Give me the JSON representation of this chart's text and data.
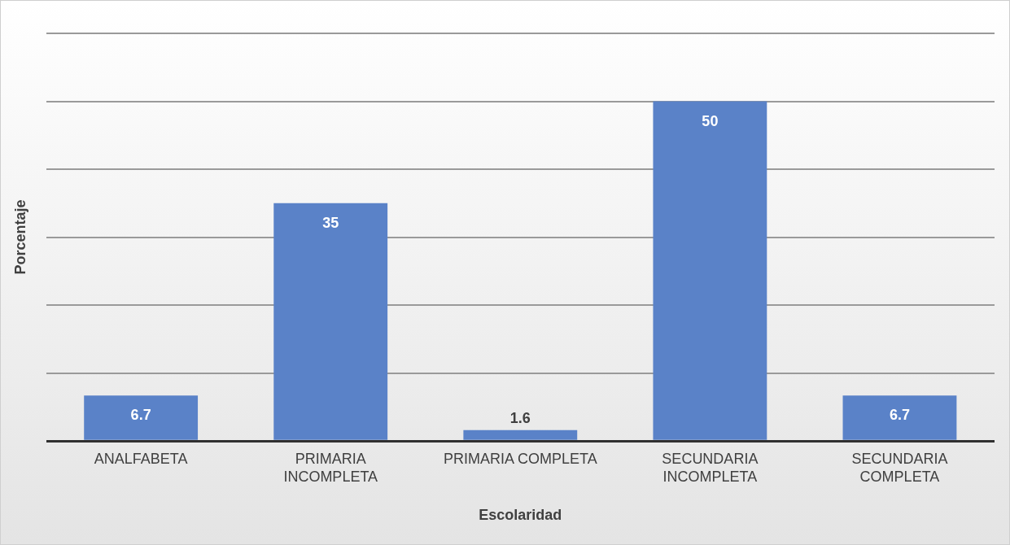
{
  "chart_data": {
    "type": "bar",
    "xlabel": "Escolaridad",
    "ylabel": "Porcentaje",
    "categories": [
      "ANALFABETA",
      "PRIMARIA INCOMPLETA",
      "PRIMARIA COMPLETA",
      "SECUNDARIA INCOMPLETA",
      "SECUNDARIA COMPLETA"
    ],
    "values": [
      6.7,
      35,
      1.6,
      50,
      6.7
    ],
    "color": "#5a82c8",
    "data_labels": true,
    "ylim": [
      0,
      60
    ],
    "yticks": [
      {
        "value": 0,
        "label": null
      },
      {
        "value": 10,
        "label": null
      },
      {
        "value": 20,
        "label": null
      },
      {
        "value": 30,
        "label": null
      },
      {
        "value": 40,
        "label": null
      },
      {
        "value": 50,
        "label": null
      },
      {
        "value": 60,
        "label": null
      }
    ],
    "grid": "y",
    "tick_labels": "x",
    "legend": false
  }
}
